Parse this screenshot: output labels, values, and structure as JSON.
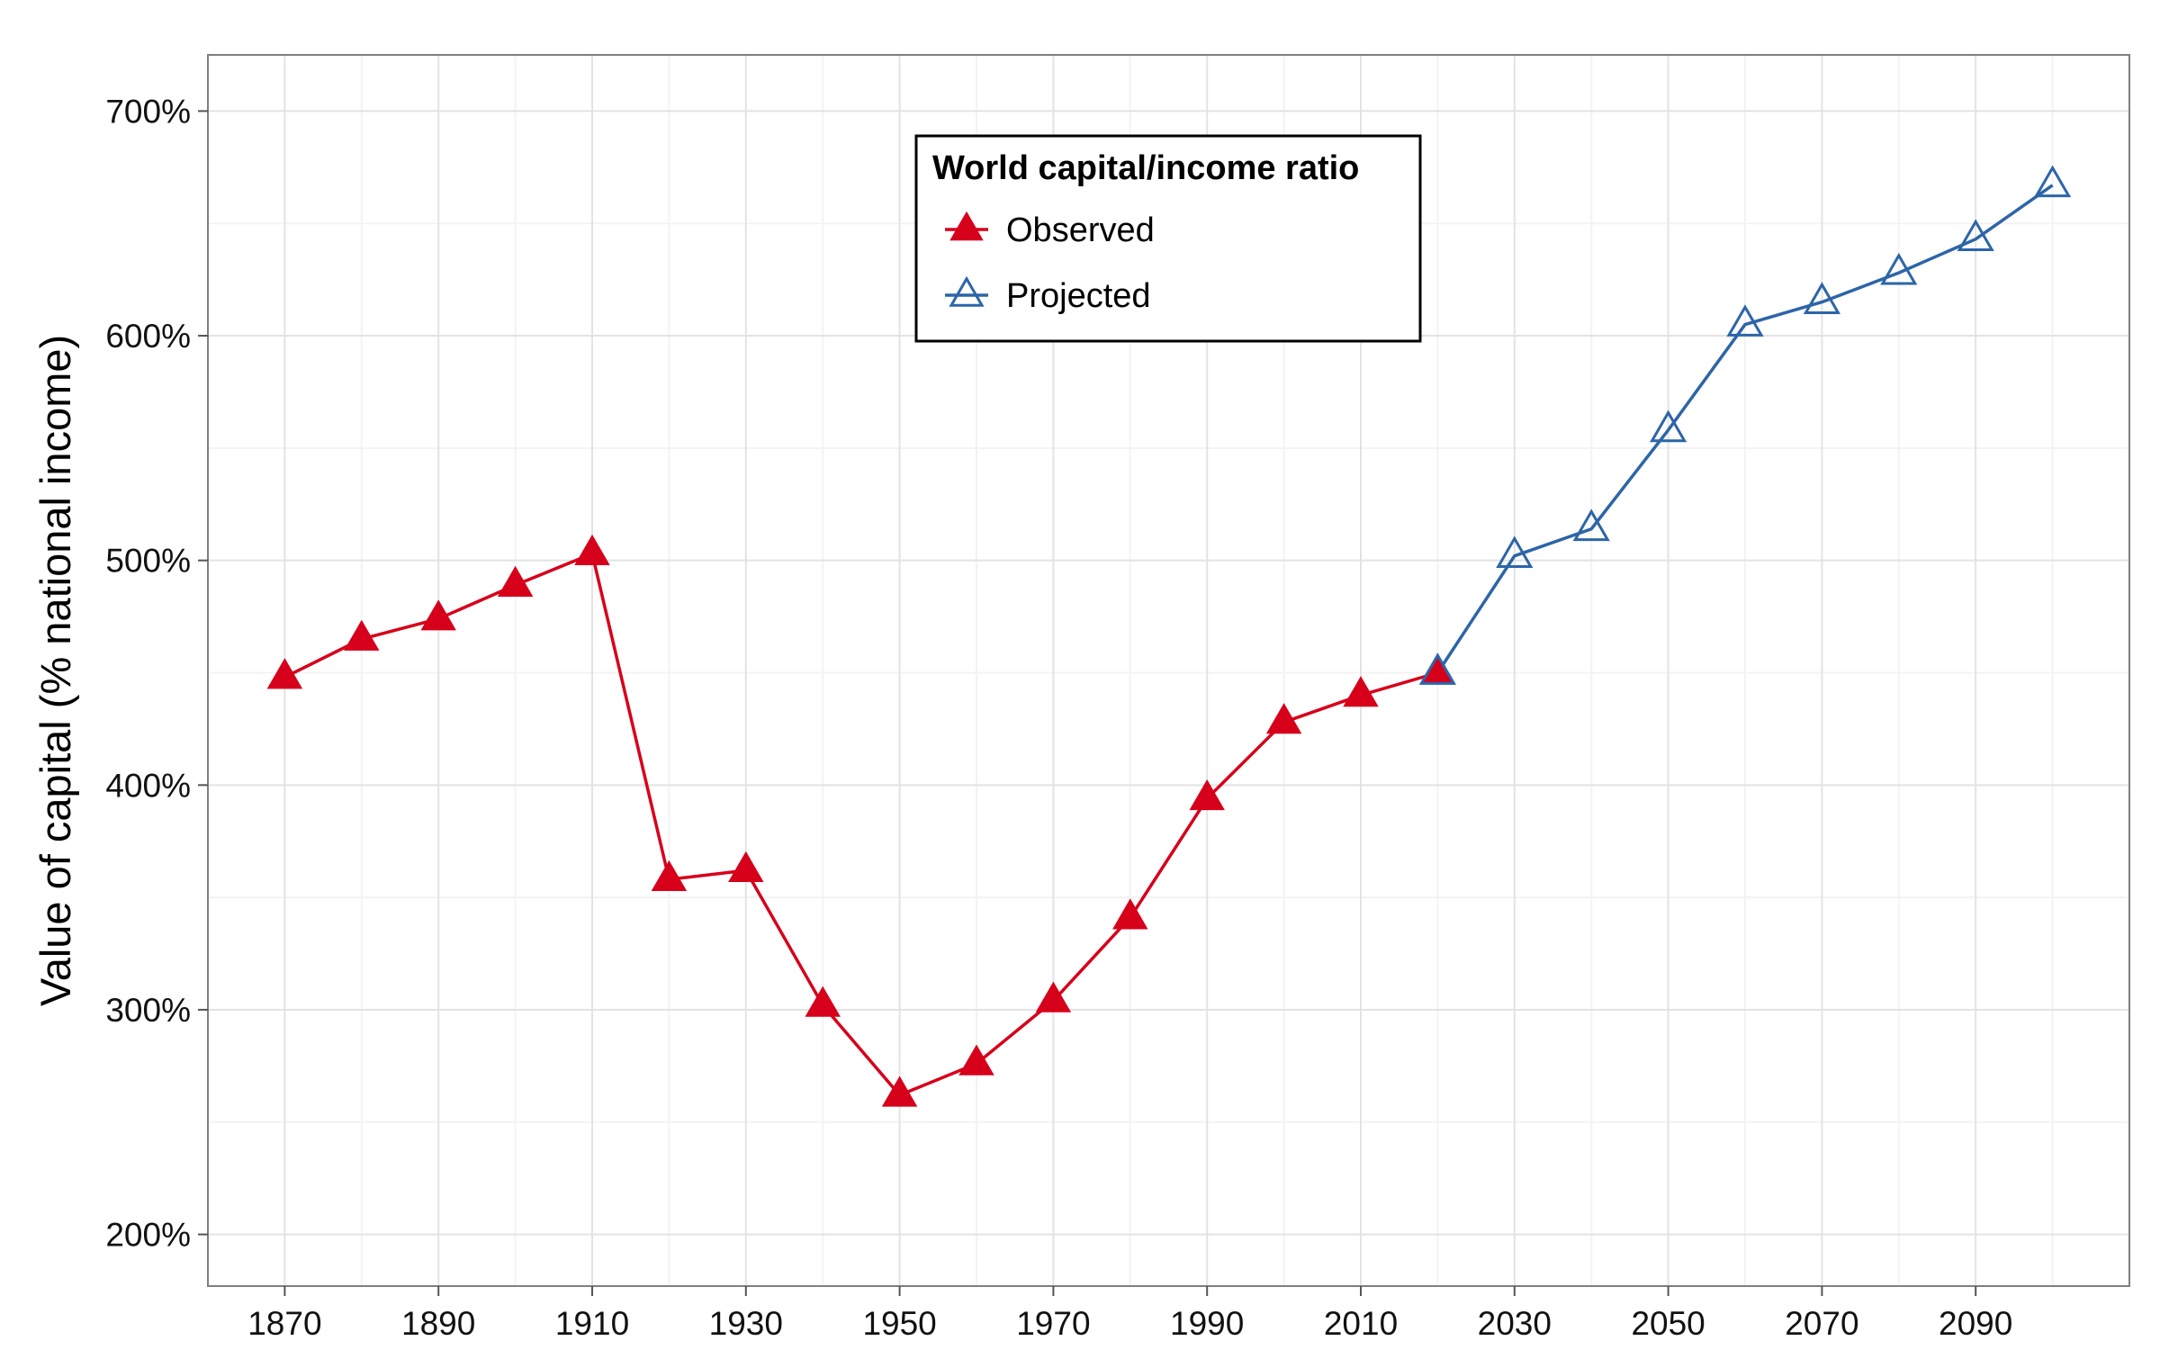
{
  "chart_data": {
    "type": "line",
    "title": "",
    "xlabel": "",
    "ylabel": "Value of capital (% national income)",
    "xlim": [
      1860,
      2110
    ],
    "ylim": [
      177,
      725
    ],
    "x_ticks": [
      "1870",
      "1890",
      "1910",
      "1930",
      "1950",
      "1970",
      "1990",
      "2010",
      "2030",
      "2050",
      "2070",
      "2090"
    ],
    "y_ticks": [
      "200%",
      "300%",
      "400%",
      "500%",
      "600%",
      "700%"
    ],
    "grid": true,
    "legend": {
      "title": "World capital/income ratio",
      "position": "top-center"
    },
    "series": [
      {
        "name": "Observed",
        "color": "#d7001b",
        "marker": "filled-triangle",
        "x": [
          1870,
          1880,
          1890,
          1900,
          1910,
          1920,
          1930,
          1940,
          1950,
          1960,
          1970,
          1980,
          1990,
          2000,
          2010,
          2020
        ],
        "y": [
          448,
          465,
          474,
          489,
          503,
          358,
          362,
          302,
          262,
          276,
          304,
          341,
          394,
          428,
          440,
          450
        ]
      },
      {
        "name": "Projected",
        "color": "#2c65a8",
        "marker": "open-triangle",
        "x": [
          2020,
          2030,
          2040,
          2050,
          2060,
          2070,
          2080,
          2090,
          2100
        ],
        "y": [
          450,
          502,
          514,
          558,
          605,
          615,
          628,
          643,
          667
        ]
      }
    ]
  }
}
